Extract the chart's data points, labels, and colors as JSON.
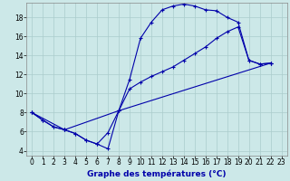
{
  "xlabel": "Graphe des températures (°C)",
  "background_color": "#cce8e8",
  "grid_color": "#aacccc",
  "line_color": "#0000aa",
  "ylim": [
    3.5,
    19.5
  ],
  "xlim": [
    -0.5,
    23.5
  ],
  "yticks": [
    4,
    6,
    8,
    10,
    12,
    14,
    16,
    18
  ],
  "xticks": [
    0,
    1,
    2,
    3,
    4,
    5,
    6,
    7,
    8,
    9,
    10,
    11,
    12,
    13,
    14,
    15,
    16,
    17,
    18,
    19,
    20,
    21,
    22,
    23
  ],
  "line1_x": [
    0,
    1,
    2,
    3,
    4,
    5,
    6,
    7,
    8,
    9,
    10,
    11,
    12,
    13,
    14,
    15,
    16,
    17,
    18,
    19,
    20,
    21,
    22
  ],
  "line1_y": [
    8.0,
    7.2,
    6.5,
    6.2,
    5.8,
    5.1,
    4.7,
    4.2,
    8.2,
    11.5,
    15.8,
    17.5,
    18.8,
    19.2,
    19.4,
    19.2,
    18.8,
    18.7,
    18.0,
    17.5,
    13.5,
    13.1,
    13.2
  ],
  "line2_x": [
    0,
    1,
    2,
    3,
    4,
    5,
    6,
    7,
    8,
    9,
    10,
    11,
    12,
    13,
    14,
    15,
    16,
    17,
    18,
    19,
    20,
    21,
    22
  ],
  "line2_y": [
    8.0,
    7.2,
    6.5,
    6.2,
    5.8,
    5.1,
    4.7,
    5.9,
    8.2,
    10.5,
    11.2,
    11.8,
    12.3,
    12.8,
    13.5,
    14.2,
    14.9,
    15.8,
    16.5,
    17.0,
    13.5,
    13.1,
    13.2
  ],
  "line3_x": [
    0,
    3,
    8,
    22
  ],
  "line3_y": [
    8.0,
    6.2,
    8.2,
    13.2
  ],
  "marker": "+",
  "markersize": 3,
  "linewidth": 0.8,
  "xlabel_fontsize": 6.5,
  "tick_labelsize": 5.5
}
